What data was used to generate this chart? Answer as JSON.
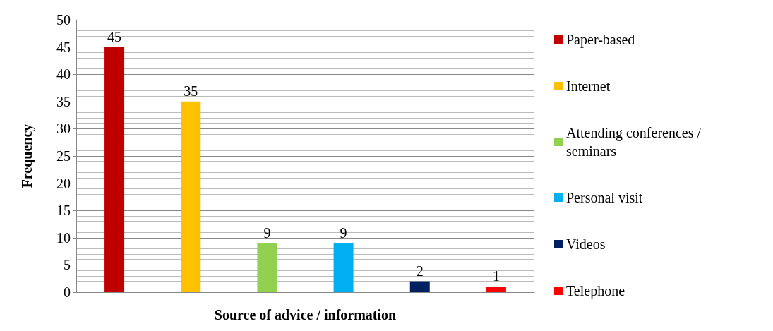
{
  "chart_data": {
    "type": "bar",
    "xlabel": "Source of advice / information",
    "ylabel": "Frequency",
    "categories": [
      null,
      null,
      null,
      null,
      null,
      null
    ],
    "series": [
      {
        "name": "Paper-based",
        "color": "#c00000",
        "values": [
          45,
          null,
          null,
          null,
          null,
          null
        ]
      },
      {
        "name": "Internet",
        "color": "#ffc000",
        "values": [
          null,
          35,
          null,
          null,
          null,
          null
        ]
      },
      {
        "name": "Attending conferences / seminars",
        "color": "#92d050",
        "values": [
          null,
          null,
          9,
          null,
          null,
          null
        ]
      },
      {
        "name": "Personal visit",
        "color": "#00b0f0",
        "values": [
          null,
          null,
          null,
          9,
          null,
          null
        ]
      },
      {
        "name": "Videos",
        "color": "#002060",
        "values": [
          null,
          null,
          null,
          null,
          2,
          null
        ]
      },
      {
        "name": "Telephone",
        "color": "#ff0000",
        "values": [
          null,
          null,
          null,
          null,
          null,
          1
        ]
      }
    ],
    "ylim": [
      0,
      50
    ],
    "yticks": [
      0,
      5,
      10,
      15,
      20,
      25,
      30,
      35,
      40,
      45,
      50
    ],
    "grid": "y",
    "legend": "right",
    "data_labels": true
  }
}
